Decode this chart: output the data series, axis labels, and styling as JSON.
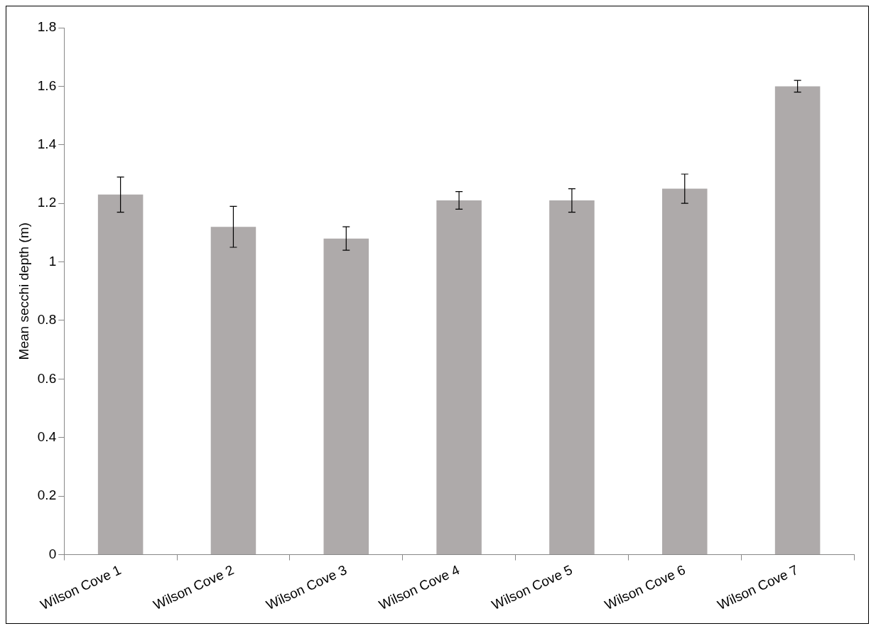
{
  "chart_data": {
    "type": "bar",
    "ylabel": "Mean secchi depth (m)",
    "categories": [
      "Wilson Cove 1",
      "Wilson Cove 2",
      "Wilson Cove 3",
      "Wilson Cove 4",
      "Wilson Cove 5",
      "Wilson Cove 6",
      "Wilson Cove 7"
    ],
    "values": [
      1.23,
      1.12,
      1.08,
      1.21,
      1.21,
      1.25,
      1.6
    ],
    "errors": [
      0.06,
      0.07,
      0.04,
      0.03,
      0.04,
      0.05,
      0.02
    ],
    "color": "#aeaaaa",
    "ylim": [
      0,
      1.8
    ],
    "yticks": [
      0,
      0.2,
      0.4,
      0.6,
      0.8,
      1,
      1.2,
      1.4,
      1.6,
      1.8
    ],
    "grid": false,
    "legend": false
  }
}
